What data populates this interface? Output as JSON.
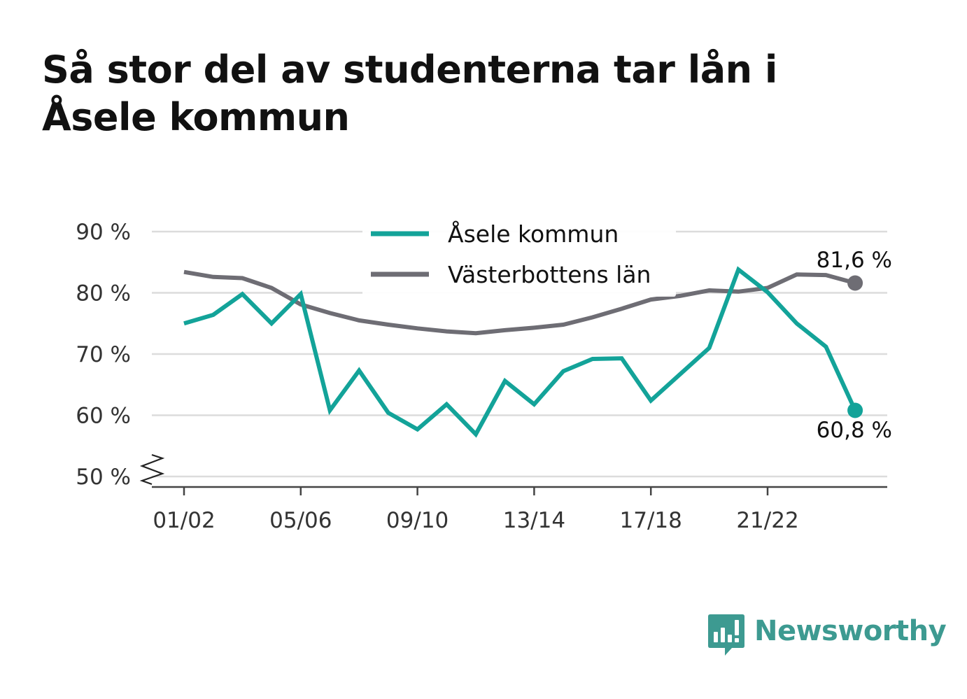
{
  "title": "Så stor del av studenterna tar lån i Åsele kommun",
  "brand": {
    "name": "Newsworthy",
    "icon": "newsworthy-chart-icon",
    "color": "#3d9a91"
  },
  "chart_data": {
    "type": "line",
    "title": "Så stor del av studenterna tar lån i Åsele kommun",
    "xlabel": "",
    "ylabel": "",
    "x": [
      "01/02",
      "02/03",
      "03/04",
      "04/05",
      "05/06",
      "06/07",
      "07/08",
      "08/09",
      "09/10",
      "10/11",
      "11/12",
      "12/13",
      "13/14",
      "14/15",
      "15/16",
      "16/17",
      "17/18",
      "18/19",
      "19/20",
      "20/21",
      "21/22",
      "22/23",
      "23/24",
      "24/25"
    ],
    "x_tick_labels": [
      "01/02",
      "05/06",
      "09/10",
      "13/14",
      "17/18",
      "21/22"
    ],
    "y_tick_labels": [
      "50 %",
      "60 %",
      "70 %",
      "80 %",
      "90 %"
    ],
    "y_ticks": [
      50,
      60,
      70,
      80,
      90
    ],
    "ylim": [
      49,
      91
    ],
    "y_axis_break": true,
    "grid": true,
    "legend_placement": "top-center",
    "series": [
      {
        "name": "Åsele kommun",
        "color": "#13a399",
        "values": [
          75.0,
          76.4,
          79.8,
          75.0,
          79.8,
          60.8,
          67.3,
          60.4,
          57.7,
          61.8,
          56.9,
          65.6,
          61.8,
          67.2,
          69.2,
          69.3,
          62.4,
          66.7,
          71.0,
          83.8,
          80.1,
          75.0,
          71.2,
          60.8
        ],
        "end_label": "60,8 %"
      },
      {
        "name": "Västerbottens län",
        "color": "#6e6d74",
        "values": [
          83.4,
          82.6,
          82.4,
          80.8,
          78.1,
          76.7,
          75.5,
          74.8,
          74.2,
          73.7,
          73.4,
          73.9,
          74.3,
          74.8,
          76.0,
          77.4,
          78.9,
          79.5,
          80.4,
          80.2,
          80.8,
          83.0,
          82.9,
          81.6
        ],
        "end_label": "81,6 %"
      }
    ]
  }
}
